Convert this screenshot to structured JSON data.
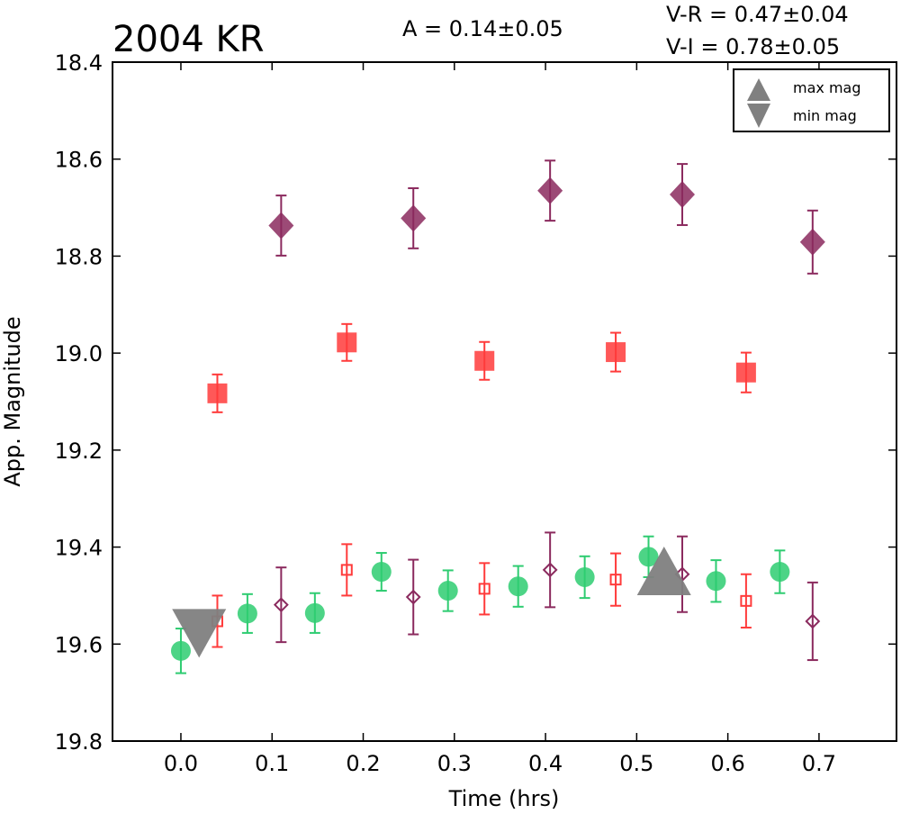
{
  "chart_data": {
    "type": "scatter",
    "title": "2004 KR",
    "annotations": {
      "amplitude": "A  = 0.14±0.05",
      "v_r": "V-R = 0.47±0.04",
      "v_i": "V-I  = 0.78±0.05"
    },
    "xlabel": "Time (hrs)",
    "ylabel": "App. Magnitude",
    "xlim": [
      -0.075,
      0.785
    ],
    "ylim": [
      19.8,
      18.4
    ],
    "y_inverted": true,
    "xticks": [
      "0.0",
      "0.1",
      "0.2",
      "0.3",
      "0.4",
      "0.5",
      "0.6",
      "0.7"
    ],
    "yticks": [
      "18.4",
      "18.6",
      "18.8",
      "19.0",
      "19.2",
      "19.4",
      "19.6",
      "19.8"
    ],
    "grid": false,
    "legend_position": "top-right",
    "legend": [
      {
        "label": "max mag",
        "marker": "triangle-up",
        "color": "#808080"
      },
      {
        "label": "min mag",
        "marker": "triangle-down",
        "color": "#808080"
      }
    ],
    "series": [
      {
        "marker": "diamond",
        "filled": true,
        "color": "#8B2A5E",
        "x": [
          0.11,
          0.255,
          0.405,
          0.55,
          0.693
        ],
        "y": [
          18.737,
          18.722,
          18.665,
          18.673,
          18.771
        ],
        "err": [
          0.062,
          0.062,
          0.062,
          0.063,
          0.065
        ]
      },
      {
        "marker": "square",
        "filled": true,
        "color": "#FF3B3B",
        "x": [
          0.04,
          0.182,
          0.333,
          0.477,
          0.62
        ],
        "y": [
          19.083,
          18.978,
          19.016,
          18.998,
          19.04
        ],
        "err": [
          0.039,
          0.038,
          0.039,
          0.04,
          0.041
        ]
      },
      {
        "marker": "circle",
        "filled": true,
        "color": "#2ECC71",
        "x": [
          0.0,
          0.073,
          0.147,
          0.22,
          0.293,
          0.37,
          0.443,
          0.513,
          0.587,
          0.657
        ],
        "y": [
          19.614,
          19.537,
          19.536,
          19.451,
          19.49,
          19.481,
          19.462,
          19.42,
          19.47,
          19.451
        ],
        "err": [
          0.046,
          0.04,
          0.041,
          0.039,
          0.042,
          0.042,
          0.043,
          0.042,
          0.043,
          0.044
        ]
      },
      {
        "marker": "square",
        "filled": false,
        "color": "#FF3B3B",
        "x": [
          0.04,
          0.182,
          0.333,
          0.477,
          0.62
        ],
        "y": [
          19.553,
          19.447,
          19.486,
          19.467,
          19.511
        ],
        "err": [
          0.053,
          0.053,
          0.053,
          0.054,
          0.055
        ]
      },
      {
        "marker": "diamond",
        "filled": false,
        "color": "#8B2A5E",
        "x": [
          0.11,
          0.255,
          0.405,
          0.55,
          0.693
        ],
        "y": [
          19.519,
          19.503,
          19.447,
          19.456,
          19.553
        ],
        "err": [
          0.077,
          0.077,
          0.077,
          0.078,
          0.08
        ]
      }
    ],
    "extrema_markers": [
      {
        "type": "max",
        "marker": "triangle-up",
        "color": "#808080",
        "x": 0.53,
        "y": 19.449
      },
      {
        "type": "min",
        "marker": "triangle-down",
        "color": "#808080",
        "x": 0.02,
        "y": 19.578
      }
    ]
  }
}
